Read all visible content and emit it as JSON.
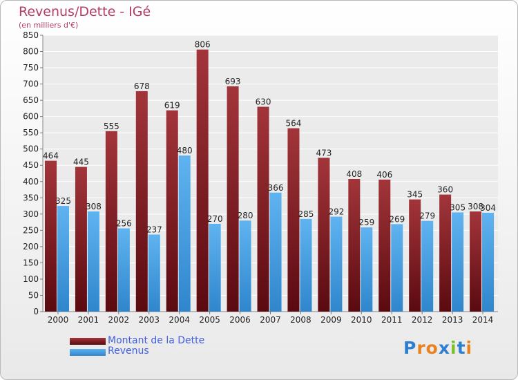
{
  "header": {
    "title": "Revenus/Dette - IGé",
    "subtitle": "(en milliers d'€)"
  },
  "chart_data": {
    "type": "bar",
    "categories": [
      "2000",
      "2001",
      "2002",
      "2003",
      "2004",
      "2005",
      "2006",
      "2007",
      "2008",
      "2009",
      "2010",
      "2011",
      "2012",
      "2013",
      "2014"
    ],
    "series": [
      {
        "name": "Montant de la Dette",
        "color": "#8b1e24",
        "values": [
          464,
          445,
          555,
          678,
          619,
          806,
          693,
          630,
          564,
          473,
          408,
          406,
          345,
          360,
          308
        ]
      },
      {
        "name": "Revenus",
        "color": "#4aa3e6",
        "values": [
          325,
          308,
          256,
          237,
          480,
          270,
          280,
          366,
          285,
          292,
          259,
          269,
          279,
          305,
          304
        ]
      }
    ],
    "ylim": [
      0,
      850
    ],
    "ytick_step": 50,
    "grid": true,
    "legend_position": "bottom-left"
  },
  "legend": {
    "items": [
      {
        "label": "Montant de la Dette",
        "color": "#8b1e24"
      },
      {
        "label": "Revenus",
        "color": "#4aa3e6"
      }
    ]
  },
  "logo": {
    "text": "Proxiti"
  }
}
